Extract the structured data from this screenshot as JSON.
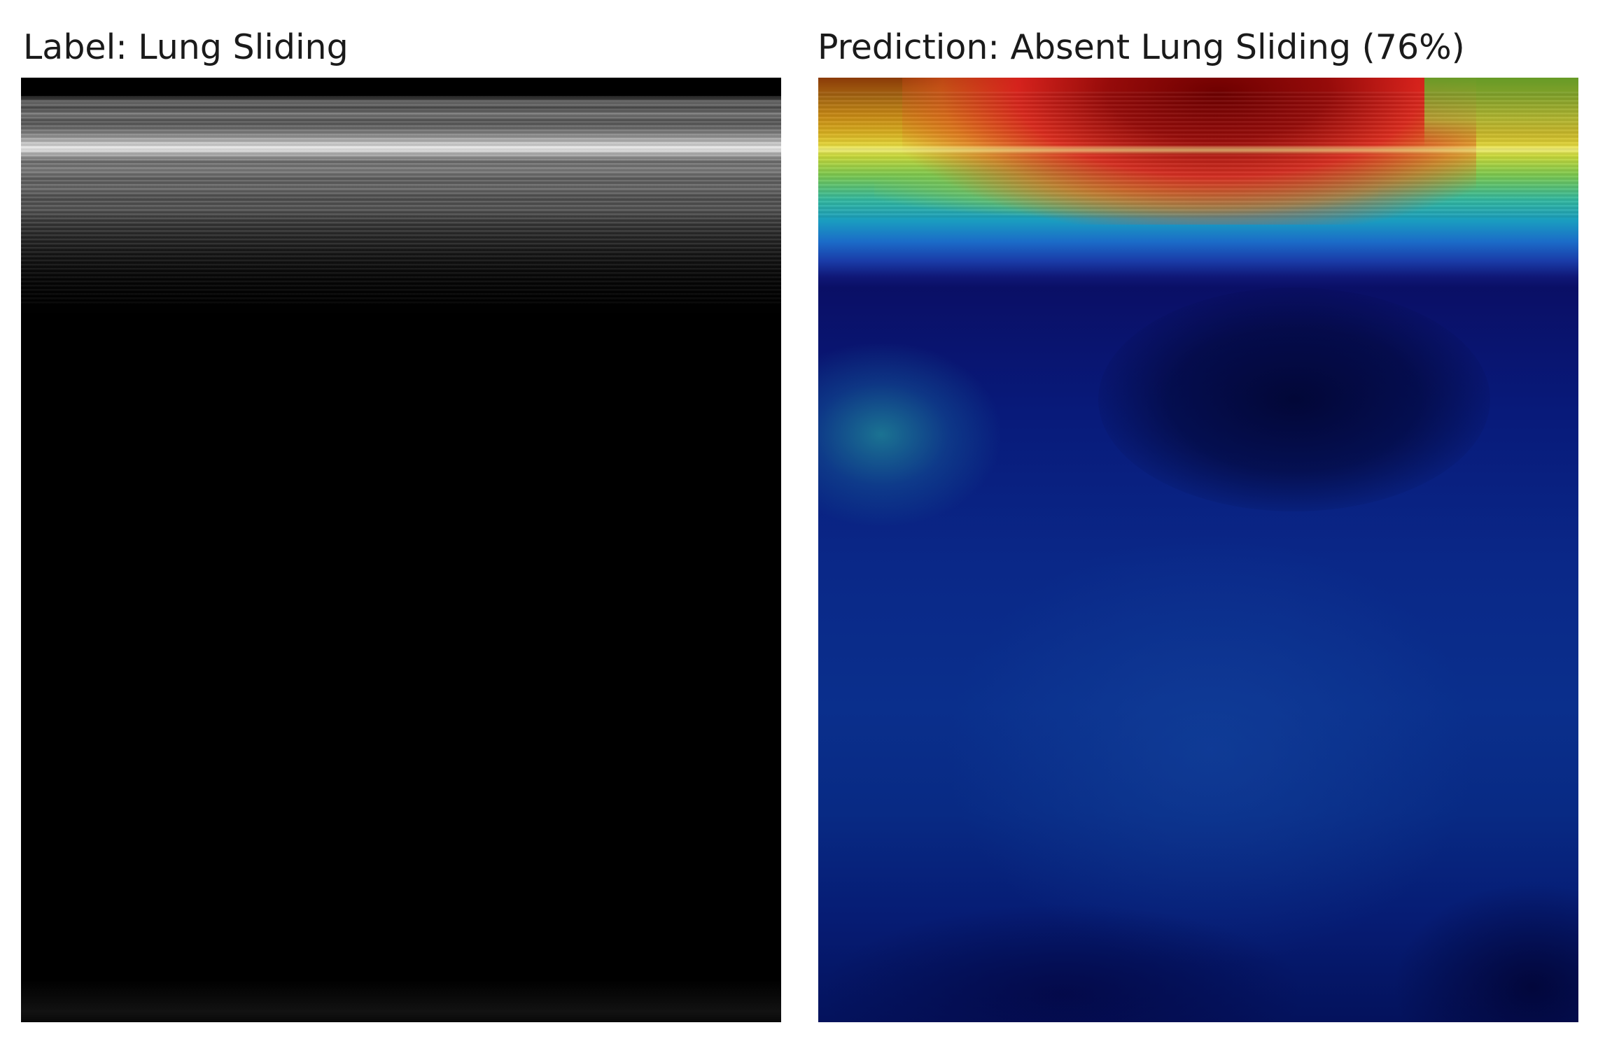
{
  "panels": {
    "left": {
      "title": "Label: Lung Sliding",
      "content": "grayscale-ultrasound-m-mode"
    },
    "right": {
      "title": "Prediction: Absent Lung Sliding (76%)",
      "content": "heatmap-overlay",
      "colormap": "jet"
    }
  },
  "colors": {
    "background": "#ffffff",
    "title_text": "#1a1a1a"
  }
}
